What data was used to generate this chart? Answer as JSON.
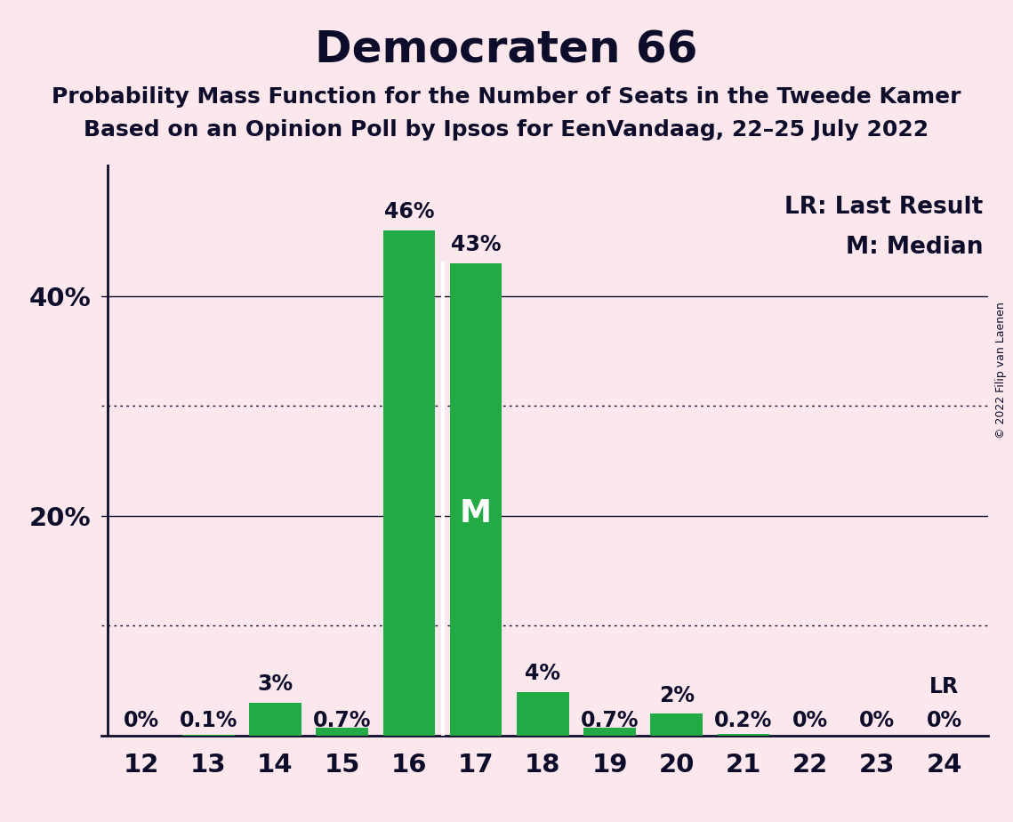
{
  "title": "Democraten 66",
  "subtitle1": "Probability Mass Function for the Number of Seats in the Tweede Kamer",
  "subtitle2": "Based on an Opinion Poll by Ipsos for EenVandaag, 22–25 July 2022",
  "copyright": "© 2022 Filip van Laenen",
  "seats": [
    12,
    13,
    14,
    15,
    16,
    17,
    18,
    19,
    20,
    21,
    22,
    23,
    24
  ],
  "probabilities": [
    0.0,
    0.1,
    3.0,
    0.7,
    46.0,
    43.0,
    4.0,
    0.7,
    2.0,
    0.2,
    0.0,
    0.0,
    0.0
  ],
  "bar_color": "#22aa44",
  "background_color": "#fce8ec",
  "text_color": "#0d0d2b",
  "median_seat": 17,
  "lr_seat": 24,
  "yticks": [
    20,
    40
  ],
  "ytick_labels": [
    "20%",
    "40%"
  ],
  "dotted_lines": [
    10,
    30
  ],
  "solid_lines": [
    20,
    40
  ],
  "ylim": [
    0,
    52
  ],
  "legend_lr": "LR: Last Result",
  "legend_m": "M: Median",
  "bar_labels": [
    "0%",
    "0.1%",
    "3%",
    "0.7%",
    "46%",
    "43%",
    "4%",
    "0.7%",
    "2%",
    "0.2%",
    "0%",
    "0%",
    "0%"
  ],
  "title_fontsize": 36,
  "subtitle_fontsize": 18,
  "bar_label_fontsize": 17,
  "legend_fontsize": 19,
  "tick_fontsize": 21,
  "median_label_fontsize": 26,
  "lr_above_fontsize": 17,
  "copyright_fontsize": 9
}
